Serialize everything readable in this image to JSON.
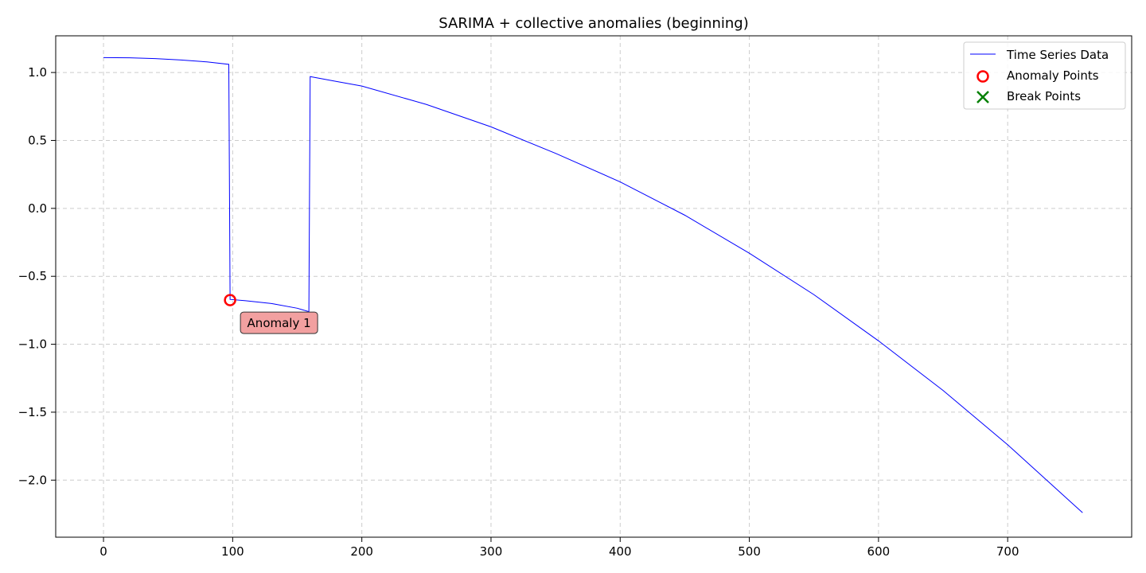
{
  "chart_data": {
    "type": "line",
    "title": "SARIMA + collective anomalies (beginning)",
    "xlabel": "",
    "ylabel": "",
    "xlim": [
      -37,
      796
    ],
    "ylim": [
      -2.42,
      1.27
    ],
    "xticks": [
      0,
      100,
      200,
      300,
      400,
      500,
      600,
      700
    ],
    "yticks": [
      1.0,
      0.5,
      0.0,
      -0.5,
      -1.0,
      -1.5,
      -2.0
    ],
    "xtick_labels": [
      "0",
      "100",
      "200",
      "300",
      "400",
      "500",
      "600",
      "700"
    ],
    "ytick_labels": [
      "1.0",
      "0.5",
      "0.0",
      "−0.5",
      "−1.0",
      "−1.5",
      "−2.0"
    ],
    "grid": true,
    "legend_position": "top-right",
    "colors": {
      "series": "#0000ff",
      "anomaly": "#ff0000",
      "break": "#008000",
      "annotation_fill": "#f2a0a0",
      "grid": "#cccccc"
    },
    "series": [
      {
        "name": "Time Series Data",
        "x": [
          0,
          20,
          40,
          60,
          80,
          97,
          98,
          110,
          130,
          150,
          159,
          160,
          180,
          200,
          250,
          300,
          350,
          400,
          450,
          500,
          550,
          600,
          650,
          700,
          758
        ],
        "y": [
          1.11,
          1.108,
          1.102,
          1.092,
          1.078,
          1.06,
          -0.67,
          -0.68,
          -0.7,
          -0.735,
          -0.76,
          0.97,
          0.935,
          0.9,
          0.765,
          0.6,
          0.405,
          0.195,
          -0.05,
          -0.33,
          -0.635,
          -0.975,
          -1.34,
          -1.74,
          -2.24
        ]
      }
    ],
    "anomaly_points": [
      {
        "name": "Anomaly Points",
        "x": 98,
        "y": -0.675,
        "label": "Anomaly 1"
      }
    ],
    "break_points": [],
    "legend": [
      {
        "label": "Time Series Data",
        "marker": "line",
        "color": "#0000ff"
      },
      {
        "label": "Anomaly Points",
        "marker": "circle",
        "color": "#ff0000"
      },
      {
        "label": "Break Points",
        "marker": "x",
        "color": "#008000"
      }
    ]
  }
}
